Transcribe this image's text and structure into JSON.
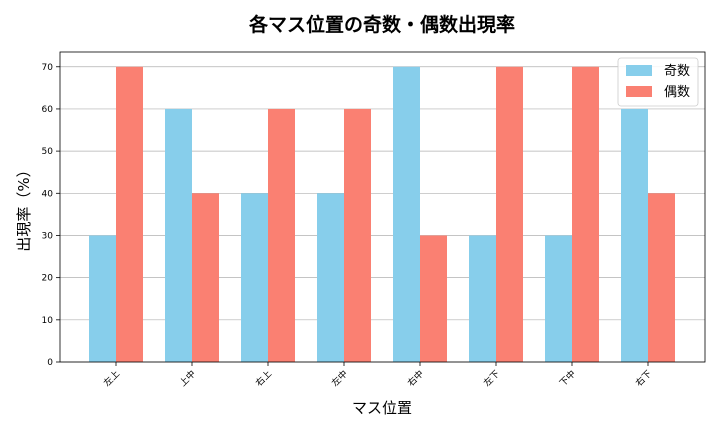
{
  "chart_data": {
    "type": "bar",
    "title": "各マス位置の奇数・偶数出現率",
    "xlabel": "マス位置",
    "ylabel": "出現率（%）",
    "categories": [
      "左上",
      "上中",
      "右上",
      "左中",
      "右中",
      "左下",
      "下中",
      "右下"
    ],
    "series": [
      {
        "name": "奇数",
        "color": "#87CEEB",
        "values": [
          30,
          60,
          40,
          40,
          70,
          30,
          30,
          60
        ]
      },
      {
        "name": "偶数",
        "color": "#FA8072",
        "values": [
          70,
          40,
          60,
          60,
          30,
          70,
          70,
          40
        ]
      }
    ],
    "ylim": [
      0,
      73.5
    ],
    "yticks": [
      0,
      10,
      20,
      30,
      40,
      50,
      60,
      70
    ],
    "grid": "y",
    "legend": "top-right"
  }
}
